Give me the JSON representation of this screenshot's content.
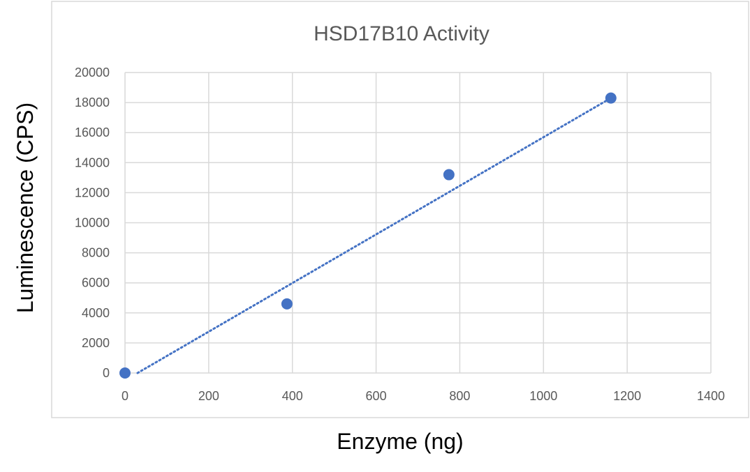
{
  "chart_data": {
    "type": "scatter",
    "title": "HSD17B10 Activity",
    "xlabel": "Enzyme (ng)",
    "ylabel": "Luminescence (CPS)",
    "xlim": [
      0,
      1400
    ],
    "ylim": [
      0,
      20000
    ],
    "x_ticks": [
      "0",
      "200",
      "400",
      "600",
      "800",
      "1000",
      "1200",
      "1400"
    ],
    "y_ticks": [
      "0",
      "2000",
      "4000",
      "6000",
      "8000",
      "10000",
      "12000",
      "14000",
      "16000",
      "18000",
      "20000"
    ],
    "grid": true,
    "legend": "none",
    "series": [
      {
        "x": [
          0,
          387,
          774,
          1161
        ],
        "y": [
          0,
          4600,
          13200,
          18300
        ],
        "color": "#4472c4"
      }
    ],
    "trendline": {
      "type": "linear",
      "style": "dotted",
      "color": "#4472c4",
      "x_range": [
        30,
        1161
      ],
      "y_range": [
        0,
        18300
      ]
    }
  }
}
